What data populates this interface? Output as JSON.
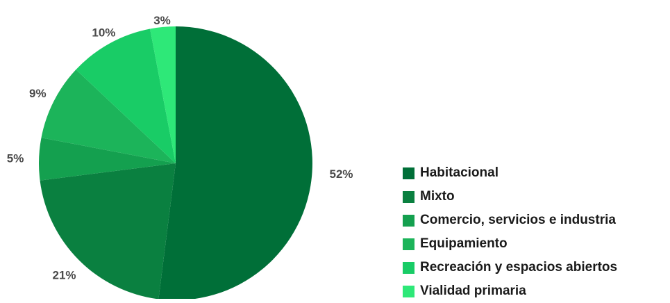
{
  "chart_data": {
    "type": "pie",
    "categories": [
      "Habitacional",
      "Mixto",
      "Comercio, servicios e industria",
      "Equipamiento",
      "Recreación y espacios abiertos",
      "Vialidad primaria"
    ],
    "values": [
      52,
      21,
      5,
      9,
      10,
      3
    ],
    "labels": [
      "52%",
      "21%",
      "5%",
      "9%",
      "10%",
      "3%"
    ],
    "colors": [
      "#006f38",
      "#0a8040",
      "#14a04f",
      "#1cb45a",
      "#19cc66",
      "#2ee878"
    ],
    "legend_position": "right"
  }
}
